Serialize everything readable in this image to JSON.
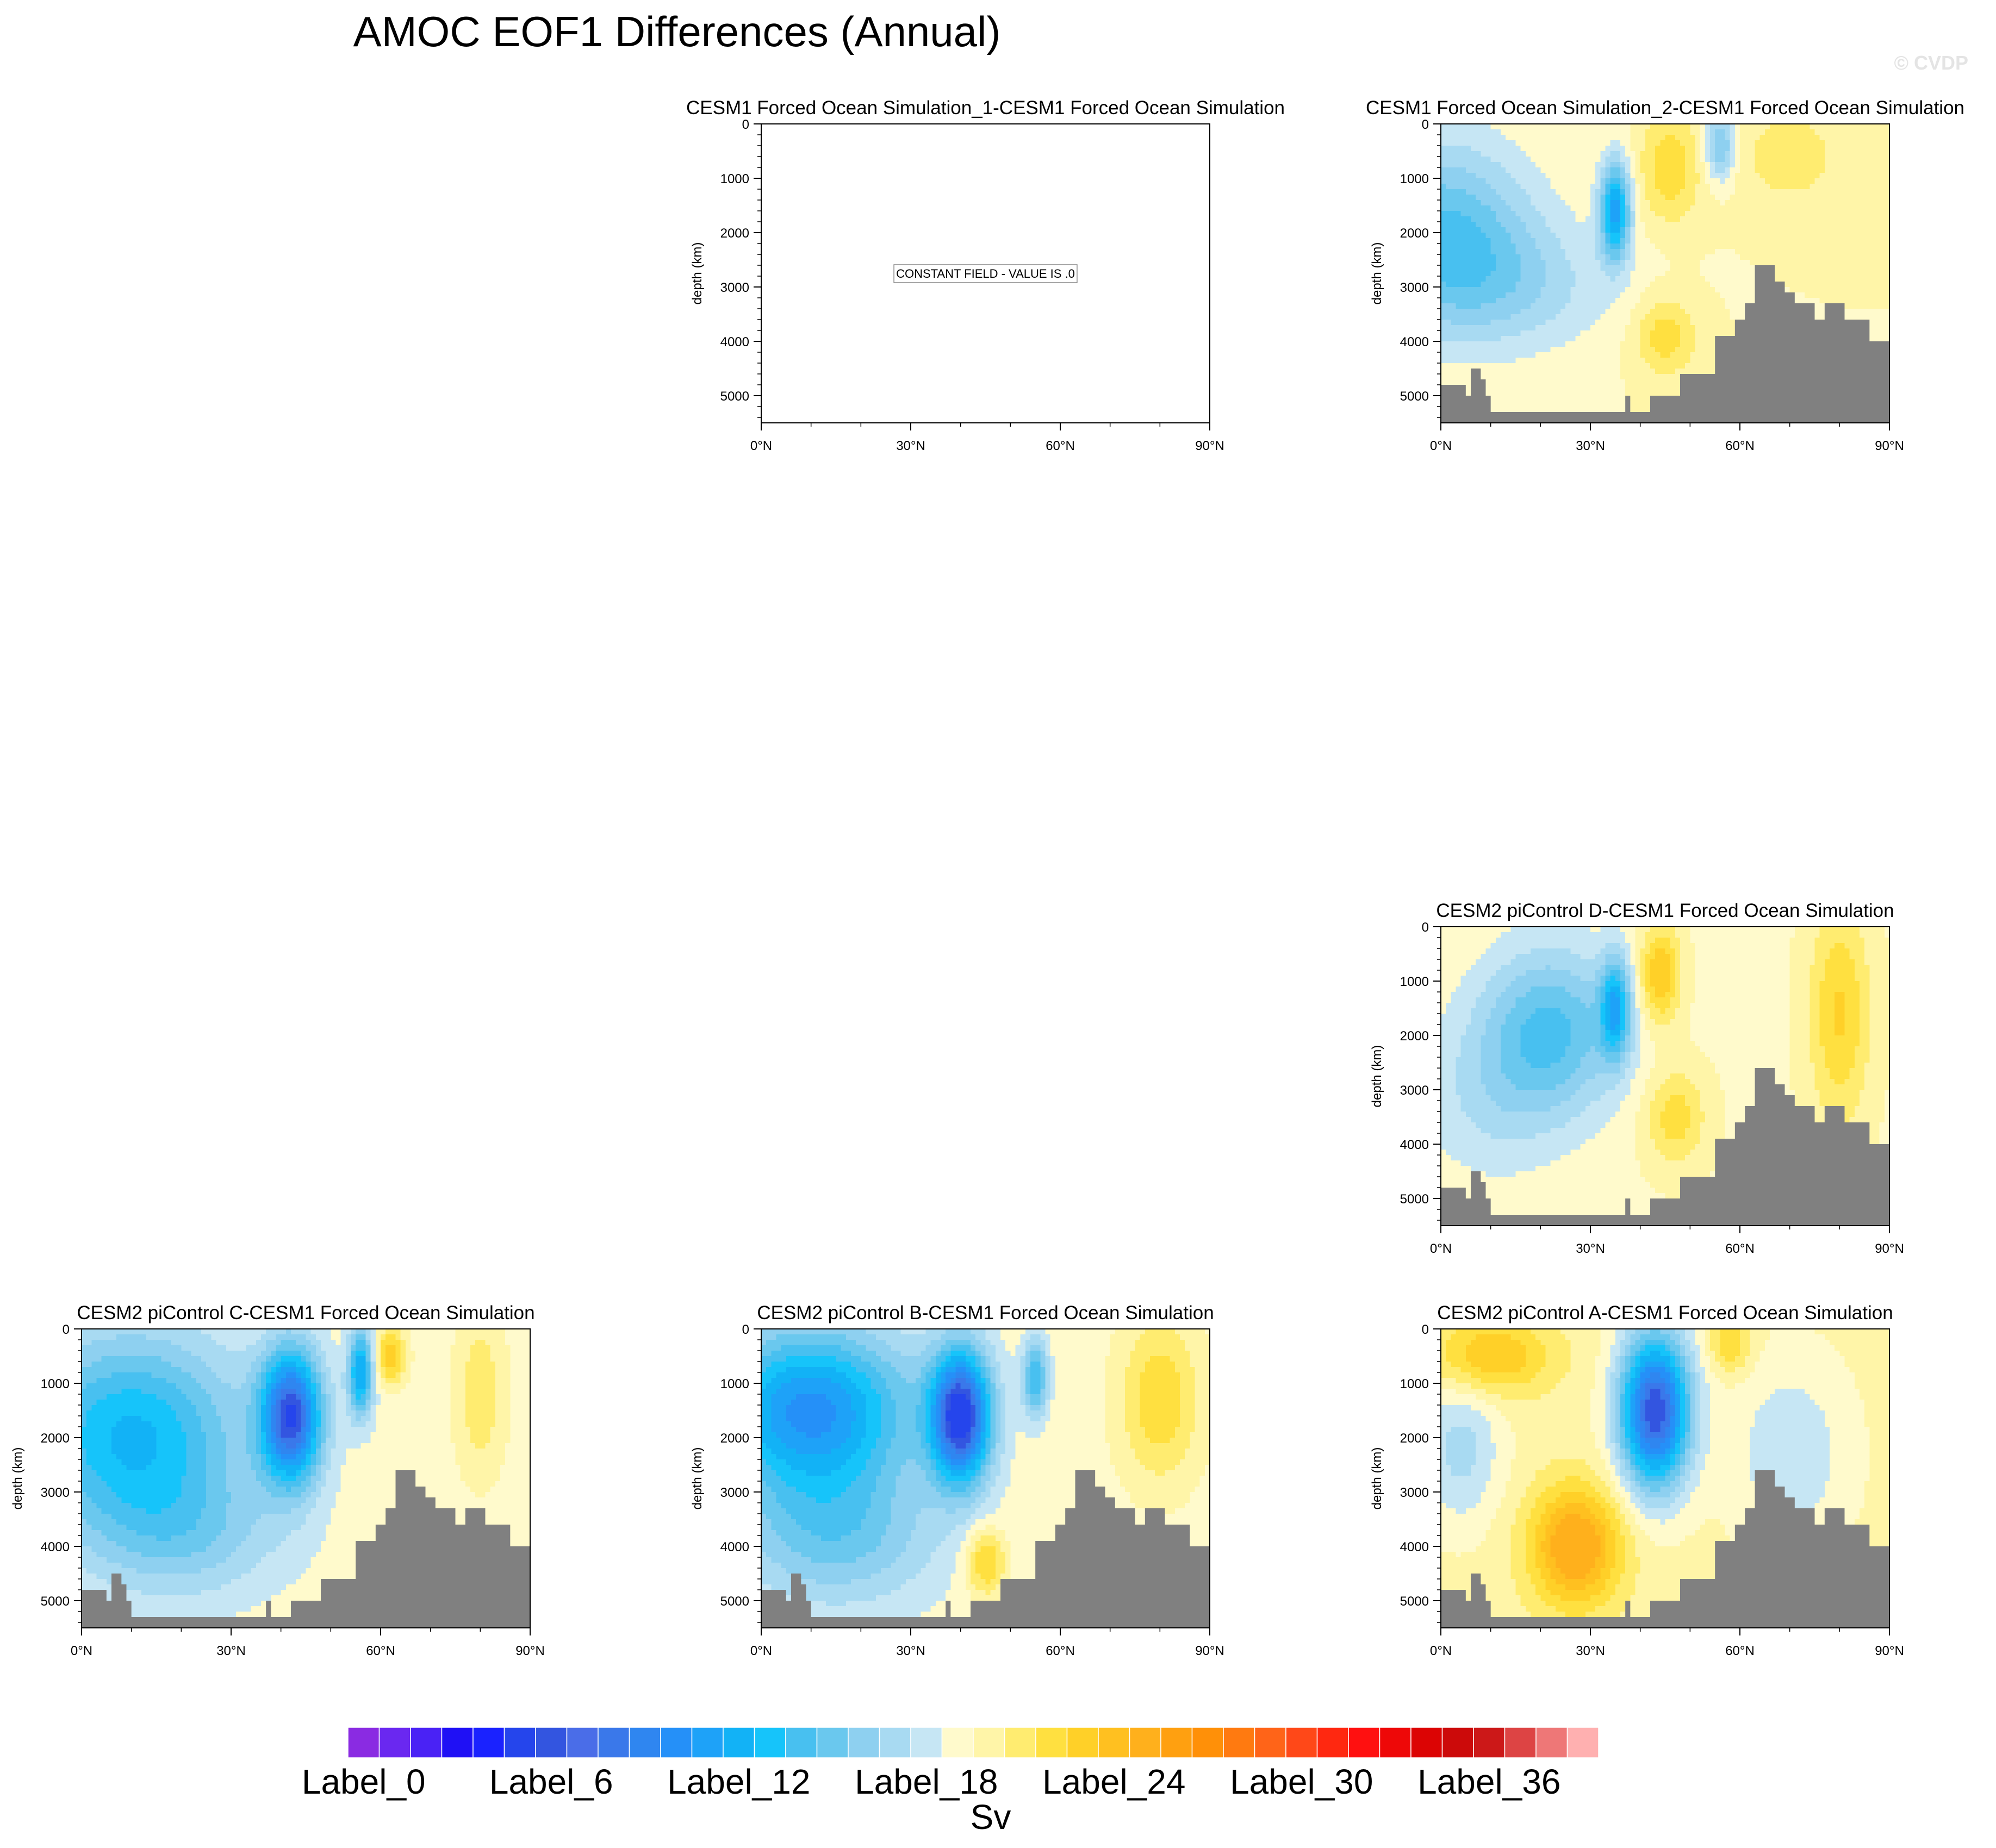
{
  "title": "AMOC EOF1 Differences (Annual)",
  "watermark": "© CVDP",
  "constant_field_label": "CONSTANT FIELD - VALUE IS .0",
  "colorbar": {
    "unit": "Sv",
    "labels": [
      "Label_0",
      "Label_6",
      "Label_12",
      "Label_18",
      "Label_24",
      "Label_30",
      "Label_36"
    ],
    "colors": [
      "#8a2be2",
      "#6a28f0",
      "#4a22f5",
      "#1f10f5",
      "#1a22ff",
      "#2545ec",
      "#3355e0",
      "#4a6de8",
      "#3a78ea",
      "#2f86f0",
      "#2590f8",
      "#1ea2f8",
      "#12b2f6",
      "#16c4fa",
      "#48c0f0",
      "#6ac8ee",
      "#8ed0f0",
      "#a8daf2",
      "#c6e6f4",
      "#fffacc",
      "#fff5a8",
      "#ffec70",
      "#ffe040",
      "#ffd028",
      "#ffc020",
      "#ffb01c",
      "#ffa010",
      "#ff9008",
      "#ff7a10",
      "#ff6418",
      "#ff4818",
      "#ff2810",
      "#ff1010",
      "#ee0808",
      "#dc0404",
      "#cc0a0a",
      "#cc1818",
      "#dd4444",
      "#ee7777",
      "#ffb0b0"
    ]
  },
  "chart_data": [
    {
      "type": "contour",
      "title": "CESM1 Forced Ocean Simulation_1-CESM1 Forced Ocean Simulation",
      "constant_field": true,
      "ylabel": "depth (km)",
      "xlim": [
        0,
        90
      ],
      "ylim": [
        0,
        5500
      ],
      "xticks": [
        "0°N",
        "30°N",
        "60°N",
        "90°N"
      ],
      "yticks": [
        "0",
        "1000",
        "2000",
        "3000",
        "4000",
        "5000"
      ]
    },
    {
      "type": "contour",
      "title": "CESM1 Forced Ocean Simulation_2-CESM1 Forced Ocean Simulation",
      "ylabel": "depth (km)",
      "xlim": [
        0,
        90
      ],
      "ylim": [
        0,
        5500
      ],
      "xticks": [
        "0°N",
        "30°N",
        "60°N",
        "90°N"
      ],
      "yticks": [
        "0",
        "1000",
        "2000",
        "3000",
        "4000",
        "5000"
      ],
      "pattern": {
        "bg": 0.18,
        "blobs": [
          [
            0,
            2000,
            18,
            1700,
            -0.9
          ],
          [
            35,
            1600,
            3,
            900,
            -1.5
          ],
          [
            46,
            800,
            6,
            1000,
            0.5
          ],
          [
            70,
            600,
            10,
            900,
            0.3
          ],
          [
            56,
            400,
            3,
            600,
            -0.8
          ],
          [
            45,
            3900,
            6,
            700,
            0.5
          ],
          [
            15,
            3000,
            20,
            1200,
            -0.4
          ]
        ],
        "clip": 2.4
      }
    },
    {
      "type": "contour",
      "title": "CESM2 piControl D-CESM1 Forced Ocean Simulation",
      "ylabel": "depth (km)",
      "xlim": [
        0,
        90
      ],
      "ylim": [
        0,
        5500
      ],
      "xticks": [
        "0°N",
        "30°N",
        "60°N",
        "90°N"
      ],
      "yticks": [
        "0",
        "1000",
        "2000",
        "3000",
        "4000",
        "5000"
      ],
      "pattern": {
        "bg": 0.15,
        "blobs": [
          [
            22,
            1900,
            14,
            1500,
            -0.9
          ],
          [
            35,
            1500,
            3,
            900,
            -1.2
          ],
          [
            44,
            900,
            4,
            900,
            0.8
          ],
          [
            80,
            1600,
            6,
            2000,
            0.6
          ],
          [
            47,
            3500,
            6,
            900,
            0.5
          ],
          [
            10,
            3200,
            15,
            1500,
            -0.3
          ]
        ],
        "clip": 2.4
      }
    },
    {
      "type": "contour",
      "title": "CESM2 piControl C-CESM1 Forced Ocean Simulation",
      "ylabel": "depth (km)",
      "xlim": [
        0,
        90
      ],
      "ylim": [
        0,
        5500
      ],
      "xticks": [
        "0°N",
        "30°N",
        "60°N",
        "90°N"
      ],
      "yticks": [
        "0",
        "1000",
        "2000",
        "3000",
        "4000",
        "5000"
      ],
      "pattern": {
        "bg": 0.1,
        "blobs": [
          [
            10,
            1900,
            22,
            1800,
            -1.2
          ],
          [
            42,
            1600,
            6,
            1200,
            -2.2
          ],
          [
            56,
            800,
            2.5,
            800,
            -1.4
          ],
          [
            62,
            500,
            3,
            500,
            0.8
          ],
          [
            80,
            1200,
            5,
            1500,
            0.4
          ],
          [
            20,
            3800,
            20,
            1200,
            -0.5
          ]
        ],
        "clip": 2.8
      }
    },
    {
      "type": "contour",
      "title": "CESM2 piControl B-CESM1 Forced Ocean Simulation",
      "ylabel": "depth (km)",
      "xlim": [
        0,
        90
      ],
      "ylim": [
        0,
        5500
      ],
      "xticks": [
        "0°N",
        "30°N",
        "60°N",
        "90°N"
      ],
      "yticks": [
        "0",
        "1000",
        "2000",
        "3000",
        "4000",
        "5000"
      ],
      "pattern": {
        "bg": 0.1,
        "blobs": [
          [
            10,
            1500,
            20,
            1500,
            -1.6
          ],
          [
            40,
            1600,
            6,
            1200,
            -2.4
          ],
          [
            55,
            900,
            2.5,
            700,
            -1.0
          ],
          [
            80,
            1300,
            8,
            1500,
            0.6
          ],
          [
            45,
            4300,
            4,
            600,
            0.7
          ],
          [
            15,
            3800,
            20,
            1300,
            -0.7
          ]
        ],
        "clip": 2.8
      }
    },
    {
      "type": "contour",
      "title": "CESM2 piControl A-CESM1 Forced Ocean Simulation",
      "ylabel": "depth (km)",
      "xlim": [
        0,
        90
      ],
      "ylim": [
        0,
        5500
      ],
      "xticks": [
        "0°N",
        "30°N",
        "60°N",
        "90°N"
      ],
      "yticks": [
        "0",
        "1000",
        "2000",
        "3000",
        "4000",
        "5000"
      ],
      "pattern": {
        "bg": 0.25,
        "blobs": [
          [
            43,
            1500,
            7,
            1400,
            -2.4
          ],
          [
            27,
            4000,
            9,
            1100,
            1.1
          ],
          [
            10,
            500,
            12,
            700,
            0.7
          ],
          [
            4,
            2200,
            8,
            1400,
            -0.5
          ],
          [
            70,
            2300,
            12,
            1800,
            -0.4
          ],
          [
            58,
            300,
            4,
            500,
            0.5
          ]
        ],
        "clip": 2.8
      }
    }
  ],
  "bathymetry_depths": [
    4800,
    4800,
    4800,
    4800,
    4800,
    5000,
    4500,
    4500,
    4700,
    5000,
    5300,
    5300,
    5300,
    5300,
    5300,
    5300,
    5300,
    5300,
    5300,
    5300,
    5300,
    5300,
    5300,
    5300,
    5300,
    5300,
    5300,
    5300,
    5300,
    5300,
    5300,
    5300,
    5300,
    5300,
    5300,
    5300,
    5300,
    5000,
    5300,
    5300,
    5300,
    5300,
    5000,
    5000,
    5000,
    5000,
    5000,
    5000,
    4600,
    4600,
    4600,
    4600,
    4600,
    4600,
    4600,
    3900,
    3900,
    3900,
    3900,
    3600,
    3600,
    3300,
    3300,
    2600,
    2600,
    2600,
    2600,
    2900,
    2900,
    3100,
    3100,
    3300,
    3300,
    3300,
    3300,
    3600,
    3600,
    3300,
    3300,
    3300,
    3300,
    3600,
    3600,
    3600,
    3600,
    3600,
    4000,
    4000,
    4000,
    4000
  ]
}
